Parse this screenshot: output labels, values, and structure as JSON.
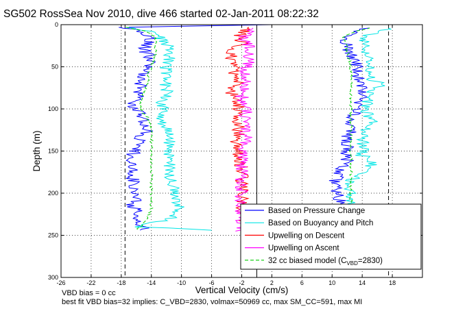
{
  "chart_data": {
    "type": "line",
    "title": "SG502 RossSea Nov 2010, dive 466 started 02-Jan-2011 08:22:32",
    "xlabel": "Vertical Velocity (cm/s)",
    "ylabel": "Depth (m)",
    "xlim": [
      -26,
      22
    ],
    "ylim": [
      0,
      300
    ],
    "y_reversed": true,
    "grid": true,
    "x_ticks": [
      -26,
      -22,
      -18,
      -14,
      -10,
      -6,
      -2,
      2,
      6,
      10,
      14,
      18
    ],
    "y_ticks": [
      0,
      50,
      100,
      150,
      200,
      250,
      300
    ],
    "legend_position": "bottom-right",
    "series": [
      {
        "name": "Based on Pressure Change",
        "color": "#0000ff",
        "style": "solid",
        "descent": {
          "depth": [
            3,
            8,
            15,
            22,
            30,
            40,
            50,
            60,
            70,
            80,
            90,
            97,
            105,
            115,
            125,
            135,
            145,
            155,
            165,
            175,
            185,
            195,
            205,
            215,
            222,
            230,
            236,
            240,
            244
          ],
          "velocity": [
            -17.5,
            -15.5,
            -14.0,
            -14.5,
            -15.0,
            -14.0,
            -14.5,
            -15.0,
            -15.5,
            -15.5,
            -16.0,
            -17.0,
            -15.5,
            -15.0,
            -14.5,
            -15.5,
            -16.0,
            -16.5,
            -16.5,
            -16.5,
            -16.5,
            -16.0,
            -16.0,
            -16.5,
            -15.5,
            -16.0,
            -16.0,
            -15.0,
            -15.5
          ]
        },
        "ascent": {
          "depth": [
            245,
            235,
            225,
            215,
            205,
            195,
            185,
            175,
            165,
            155,
            145,
            135,
            125,
            115,
            105,
            95,
            85,
            75,
            65,
            55,
            45,
            35,
            25,
            15,
            8,
            4
          ],
          "velocity": [
            11.0,
            11.5,
            11.5,
            11.0,
            11.0,
            10.5,
            10.5,
            11.0,
            12.0,
            12.0,
            12.0,
            12.0,
            12.5,
            12.5,
            13.0,
            13.5,
            14.0,
            14.0,
            13.5,
            13.5,
            13.0,
            12.5,
            12.0,
            11.5,
            13.0,
            15.0
          ]
        }
      },
      {
        "name": "Based on Buoyancy and Pitch",
        "color": "#00e5e5",
        "style": "solid",
        "descent": {
          "depth": [
            3,
            8,
            15,
            22,
            30,
            40,
            50,
            60,
            70,
            80,
            90,
            100,
            110,
            120,
            125,
            130,
            140,
            150,
            160,
            170,
            180,
            190,
            200,
            210,
            220,
            228,
            236,
            240,
            244
          ],
          "velocity": [
            -17.0,
            -14.0,
            -13.0,
            -12.0,
            -11.5,
            -11.5,
            -12.0,
            -12.0,
            -12.0,
            -12.0,
            -12.5,
            -12.5,
            -12.5,
            -12.5,
            -12.0,
            -11.5,
            -11.5,
            -11.5,
            -11.5,
            -11.5,
            -11.5,
            -11.0,
            -11.0,
            -10.5,
            -10.5,
            -11.0,
            -14.0,
            -15.5,
            -6.0
          ]
        },
        "ascent": {
          "depth": [
            245,
            235,
            225,
            215,
            205,
            195,
            185,
            175,
            165,
            155,
            145,
            135,
            125,
            115,
            105,
            95,
            85,
            75,
            70,
            65,
            55,
            45,
            35,
            25,
            15,
            8,
            4
          ],
          "velocity": [
            12.5,
            12.5,
            12.0,
            12.5,
            12.5,
            12.0,
            12.5,
            14.0,
            15.5,
            14.0,
            14.0,
            14.0,
            14.5,
            15.5,
            14.5,
            14.5,
            15.0,
            16.0,
            17.0,
            15.0,
            15.0,
            15.0,
            14.5,
            15.0,
            14.0,
            16.0,
            17.5
          ]
        }
      },
      {
        "name": "Upwelling on Descent",
        "color": "#ff0000",
        "style": "solid",
        "depth": [
          3,
          8,
          15,
          22,
          30,
          40,
          50,
          60,
          70,
          80,
          90,
          100,
          110,
          120,
          130,
          140,
          150,
          160,
          170,
          180,
          190,
          200,
          210,
          220,
          230,
          240,
          244
        ],
        "velocity": [
          -1.0,
          -1.5,
          -2.5,
          -2.0,
          -3.0,
          -3.5,
          -3.0,
          -3.0,
          -2.5,
          -3.5,
          -2.5,
          -2.5,
          -3.0,
          -2.5,
          -2.5,
          -3.0,
          -2.5,
          -2.5,
          -2.0,
          -2.0,
          -2.0,
          -2.0,
          -2.0,
          -2.0,
          -1.5,
          -1.5,
          -2.0
        ]
      },
      {
        "name": "Upwelling on Ascent",
        "color": "#ff00ff",
        "style": "solid",
        "depth": [
          245,
          235,
          225,
          215,
          205,
          195,
          185,
          175,
          165,
          155,
          145,
          135,
          125,
          115,
          105,
          95,
          85,
          75,
          65,
          55,
          45,
          35,
          25,
          15,
          8,
          4
        ],
        "velocity": [
          -2.0,
          -2.0,
          -2.0,
          -2.0,
          -2.0,
          -2.0,
          -2.0,
          -2.0,
          -2.0,
          -2.0,
          -1.5,
          -1.5,
          -1.5,
          -1.5,
          -1.5,
          -1.5,
          -2.0,
          -1.5,
          -1.5,
          -1.5,
          -1.0,
          -1.0,
          -1.0,
          -2.0,
          -1.0,
          -0.5
        ]
      },
      {
        "name": "32 cc biased model (C",
        "name_subscript": "VBD",
        "name_suffix": "=2830)",
        "color": "#00cc00",
        "style": "dashed",
        "descent": {
          "depth": [
            3,
            8,
            15,
            25,
            40,
            50,
            60,
            70,
            80,
            95,
            100,
            110,
            125,
            140,
            150,
            170,
            200,
            220,
            236,
            244
          ],
          "velocity": [
            -17.5,
            -14.5,
            -13.5,
            -13.5,
            -13.5,
            -14.0,
            -14.5,
            -14.5,
            -15.0,
            -15.5,
            -15.5,
            -14.5,
            -14.0,
            -14.0,
            -14.0,
            -14.0,
            -14.0,
            -14.0,
            -15.0,
            -16.0
          ]
        },
        "ascent": {
          "depth": [
            245,
            230,
            210,
            190,
            170,
            150,
            130,
            110,
            90,
            70,
            50,
            30,
            15,
            8,
            4
          ],
          "velocity": [
            12.0,
            12.0,
            12.5,
            12.5,
            12.5,
            12.5,
            12.5,
            12.5,
            12.5,
            12.5,
            12.5,
            12.0,
            11.5,
            13.0,
            15.0
          ]
        }
      }
    ],
    "reference_lines": [
      {
        "x": -17.5,
        "style": "dashed",
        "color": "#000000"
      },
      {
        "x": 17.5,
        "style": "dashed",
        "color": "#000000"
      },
      {
        "x": 0,
        "style": "solid",
        "color": "#000000"
      }
    ]
  },
  "footer": {
    "line1": "VBD bias = 0 cc",
    "line2": "best fit VBD bias=32 implies: C_VBD=2830, volmax=50969 cc, max SM_CC=591, max MI"
  }
}
